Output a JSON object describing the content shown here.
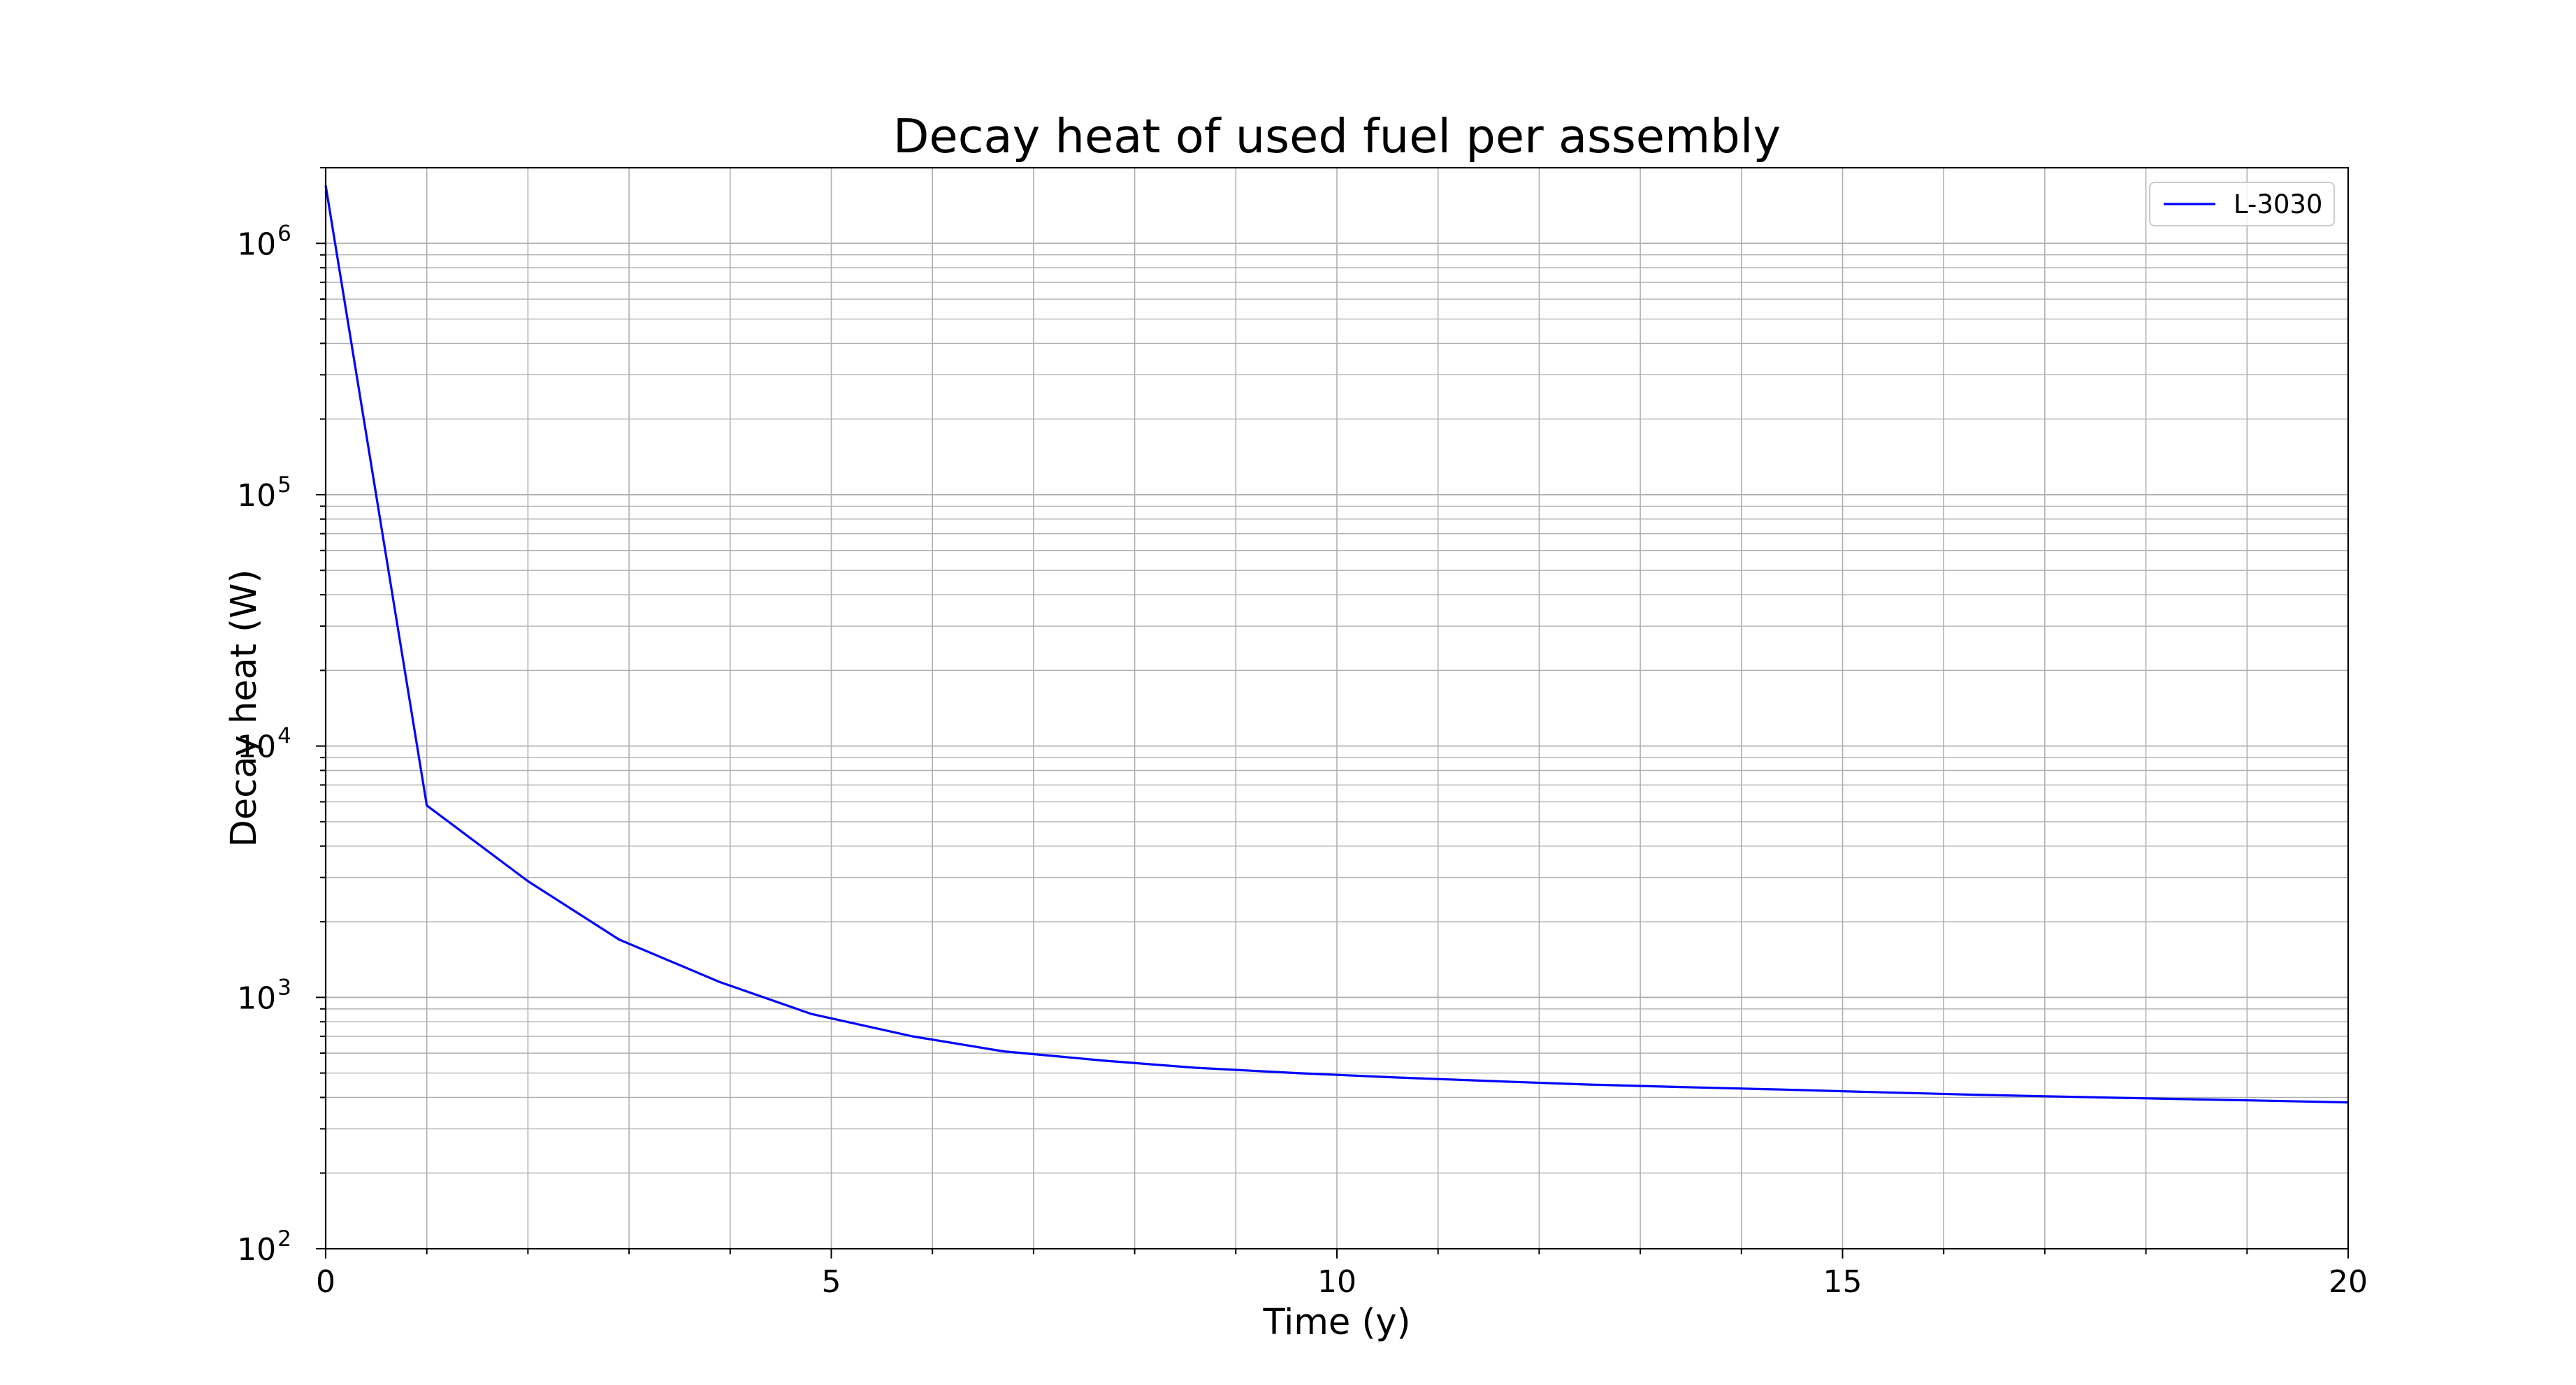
{
  "chart_data": {
    "type": "line",
    "title": "Decay heat of used fuel per assembly",
    "xlabel": "Time (y)",
    "ylabel": "Decay heat (W)",
    "xlim": [
      0,
      20
    ],
    "ylim": [
      100,
      2000000
    ],
    "yscale": "log",
    "x_ticks": [
      "0",
      "5",
      "10",
      "15",
      "20"
    ],
    "y_ticks": [
      {
        "base": "10",
        "exp": "2"
      },
      {
        "base": "10",
        "exp": "3"
      },
      {
        "base": "10",
        "exp": "4"
      },
      {
        "base": "10",
        "exp": "5"
      },
      {
        "base": "10",
        "exp": "6"
      }
    ],
    "grid": true,
    "legend_position": "top-right",
    "series": [
      {
        "name": "L-3030",
        "color": "#0000ff",
        "x": [
          0,
          1,
          2,
          2.9,
          3.9,
          4.8,
          5.8,
          6.7,
          7.7,
          8.6,
          9.6,
          10.6,
          11.5,
          12.5,
          13.4,
          14.4,
          15.3,
          16.3,
          17.3,
          18.2,
          19.2,
          20
        ],
        "y": [
          1700000,
          5800,
          2900,
          1700,
          1150,
          860,
          700,
          610,
          560,
          525,
          500,
          480,
          465,
          450,
          440,
          430,
          420,
          410,
          402,
          395,
          388,
          382
        ]
      }
    ]
  }
}
